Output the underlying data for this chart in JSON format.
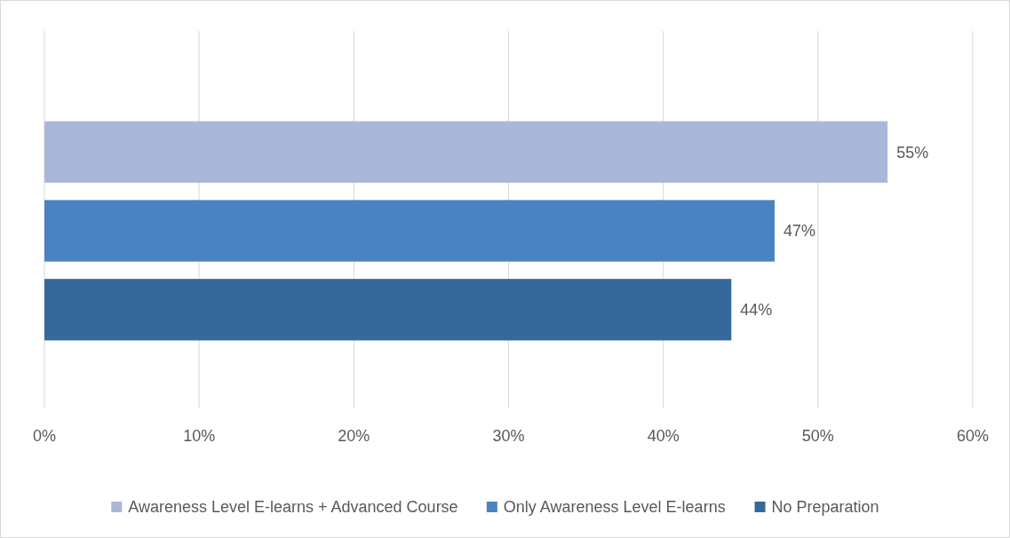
{
  "chart_data": {
    "type": "bar",
    "orientation": "horizontal",
    "categories": [
      null
    ],
    "series": [
      {
        "name": "Awareness Level E-learns + Advanced Course",
        "color": "#a9b8d9",
        "values": [
          54.5
        ],
        "value_labels": [
          "55%"
        ]
      },
      {
        "name": "Only Awareness Level E-learns",
        "color": "#4a82c2",
        "values": [
          47.2
        ],
        "value_labels": [
          "47%"
        ]
      },
      {
        "name": "No Preparation",
        "color": "#35699b",
        "values": [
          44.4
        ],
        "value_labels": [
          "44%"
        ]
      }
    ],
    "xlim": [
      0,
      60
    ],
    "xticks": [
      {
        "value": 0,
        "label": "0%"
      },
      {
        "value": 10,
        "label": "10%"
      },
      {
        "value": 20,
        "label": "20%"
      },
      {
        "value": 30,
        "label": "30%"
      },
      {
        "value": 40,
        "label": "40%"
      },
      {
        "value": 50,
        "label": "50%"
      },
      {
        "value": 60,
        "label": "60%"
      }
    ],
    "grid": "x",
    "legend": "bottom"
  }
}
